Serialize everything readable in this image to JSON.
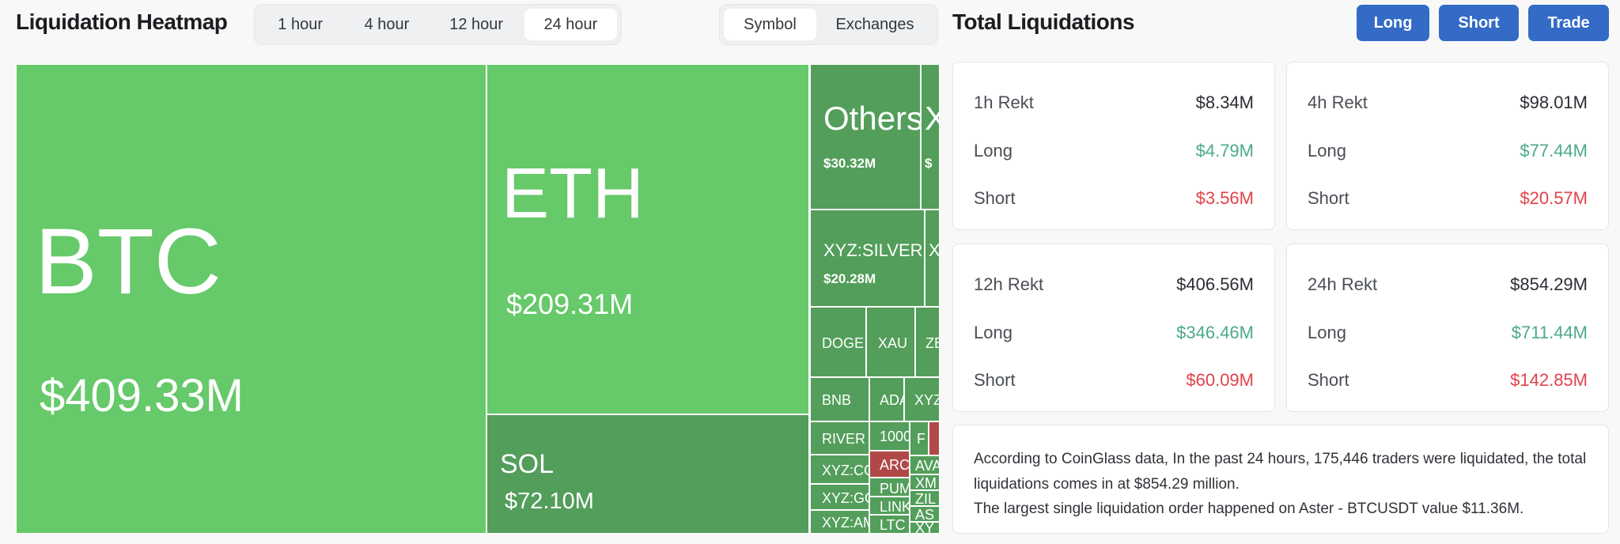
{
  "heatmap": {
    "title": "Liquidation Heatmap",
    "time_tabs": [
      {
        "label": "1 hour"
      },
      {
        "label": "4 hour"
      },
      {
        "label": "12 hour"
      },
      {
        "label": "24 hour",
        "selected": true
      }
    ],
    "view_tabs": [
      {
        "label": "Symbol",
        "selected": true
      },
      {
        "label": "Exchanges"
      }
    ],
    "colors": {
      "long_major": "#66c96a",
      "long": "#529e5a",
      "short": "#b04848"
    },
    "cells": [
      {
        "name": "BTC",
        "value": "$409.33M",
        "color": "long_major"
      },
      {
        "name": "ETH",
        "value": "$209.31M",
        "color": "long_major"
      },
      {
        "name": "SOL",
        "value": "$72.10M",
        "color": "long"
      },
      {
        "name": "Others",
        "value": "$30.32M",
        "color": "long"
      },
      {
        "name": "XYZ",
        "value": "$",
        "color": "long"
      },
      {
        "name": "XYZ:SILVER",
        "value": "$20.28M",
        "color": "long"
      },
      {
        "name": "XYZ",
        "color": "long"
      },
      {
        "name": "DOGE",
        "color": "long"
      },
      {
        "name": "XAU",
        "color": "long"
      },
      {
        "name": "ZEC",
        "color": "long"
      },
      {
        "name": "BNB",
        "color": "long"
      },
      {
        "name": "ADA",
        "color": "long"
      },
      {
        "name": "XYZ",
        "color": "long"
      },
      {
        "name": "RIVER",
        "color": "long"
      },
      {
        "name": "XYZ:CO",
        "color": "long"
      },
      {
        "name": "XYZ:GO",
        "color": "long"
      },
      {
        "name": "XYZ:AM",
        "color": "long"
      },
      {
        "name": "1000",
        "color": "long"
      },
      {
        "name": "ARC",
        "color": "short"
      },
      {
        "name": "PUM",
        "color": "long"
      },
      {
        "name": "LINK",
        "color": "long"
      },
      {
        "name": "LTC",
        "color": "long"
      },
      {
        "name": "F",
        "color": "long"
      },
      {
        "name": "",
        "color": "short"
      },
      {
        "name": "AVA",
        "color": "long"
      },
      {
        "name": "XM",
        "color": "long"
      },
      {
        "name": "ZIL",
        "color": "long"
      },
      {
        "name": "AS",
        "color": "long"
      },
      {
        "name": "XY",
        "color": "long"
      }
    ]
  },
  "totals": {
    "title": "Total Liquidations",
    "buttons": [
      {
        "label": "Long"
      },
      {
        "label": "Short"
      },
      {
        "label": "Trade"
      }
    ],
    "cards": [
      {
        "label": "1h Rekt",
        "total": "$8.34M",
        "long_label": "Long",
        "long": "$4.79M",
        "short_label": "Short",
        "short": "$3.56M"
      },
      {
        "label": "4h Rekt",
        "total": "$98.01M",
        "long_label": "Long",
        "long": "$77.44M",
        "short_label": "Short",
        "short": "$20.57M"
      },
      {
        "label": "12h Rekt",
        "total": "$406.56M",
        "long_label": "Long",
        "long": "$346.46M",
        "short_label": "Short",
        "short": "$60.09M"
      },
      {
        "label": "24h Rekt",
        "total": "$854.29M",
        "long_label": "Long",
        "long": "$711.44M",
        "short_label": "Short",
        "short": "$142.85M"
      }
    ],
    "summary": [
      "According to CoinGlass data, In the past 24 hours, 175,446 traders were liquidated, the total liquidations comes in at $854.29 million.",
      "The largest single liquidation order happened on Aster - BTCUSDT value $11.36M."
    ],
    "colors": {
      "long": "#4baa86",
      "short": "#e0434b",
      "button": "#336bc6"
    }
  }
}
